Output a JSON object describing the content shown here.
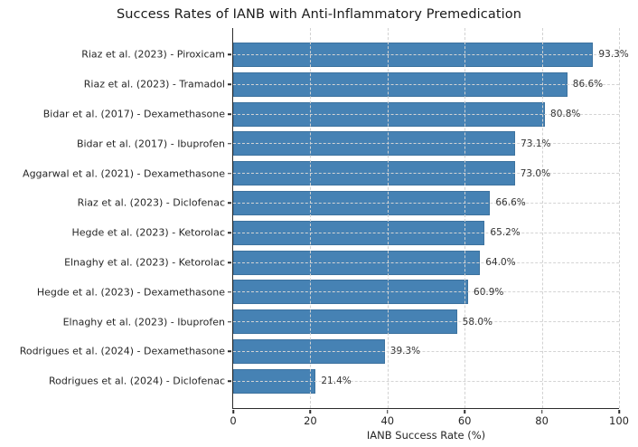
{
  "chart_data": {
    "type": "bar",
    "orientation": "horizontal",
    "title": "Success Rates of IANB with Anti-Inflammatory Premedication",
    "xlabel": "IANB Success Rate (%)",
    "ylabel": "",
    "categories": [
      "Riaz et al. (2023) - Piroxicam",
      "Riaz et al. (2023) - Tramadol",
      "Bidar et al. (2017) - Dexamethasone",
      "Bidar et al. (2017) - Ibuprofen",
      "Aggarwal et al. (2021) - Dexamethasone",
      "Riaz et al. (2023) - Diclofenac",
      "Hegde et al. (2023) - Ketorolac",
      "Elnaghy et al. (2023) - Ketorolac",
      "Hegde et al. (2023) - Dexamethasone",
      "Elnaghy et al. (2023) - Ibuprofen",
      "Rodrigues et al. (2024) - Dexamethasone",
      "Rodrigues et al. (2024) - Diclofenac"
    ],
    "values": [
      93.3,
      86.6,
      80.8,
      73.1,
      73.0,
      66.6,
      65.2,
      64.0,
      60.9,
      58.0,
      39.3,
      21.4
    ],
    "value_labels": [
      "93.3%",
      "86.6%",
      "80.8%",
      "73.1%",
      "73.0%",
      "66.6%",
      "65.2%",
      "64.0%",
      "60.9%",
      "58.0%",
      "39.3%",
      "21.4%"
    ],
    "x_ticks": [
      0,
      20,
      40,
      60,
      80,
      100
    ],
    "x_tick_labels": [
      "0",
      "20",
      "40",
      "60",
      "80",
      "100"
    ],
    "xlim": [
      0,
      100
    ],
    "grid": "dashed-both-axes-over-bars",
    "legend": "none",
    "bar_color": "#4682b4",
    "background_color": "#ffffff"
  }
}
